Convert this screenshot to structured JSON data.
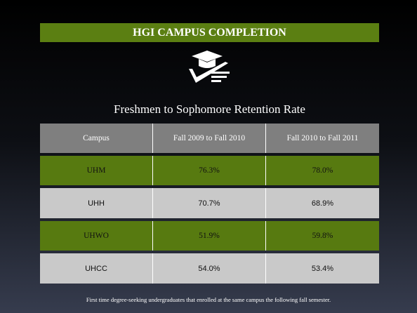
{
  "header": {
    "title": "HGI CAMPUS COMPLETION"
  },
  "subtitle": "Freshmen to Sophomore Retention Rate",
  "table": {
    "columns": [
      "Campus",
      "Fall 2009 to Fall 2010",
      "Fall 2010 to Fall 2011"
    ],
    "rows": [
      [
        "UHM",
        "76.3%",
        "78.0%"
      ],
      [
        "UHH",
        "70.7%",
        "68.9%"
      ],
      [
        "UHWO",
        "51.9%",
        "59.8%"
      ],
      [
        "UHCC",
        "54.0%",
        "53.4%"
      ]
    ]
  },
  "footnote": "First time degree-seeking undergraduates that enrolled at the same campus the following fall semester."
}
